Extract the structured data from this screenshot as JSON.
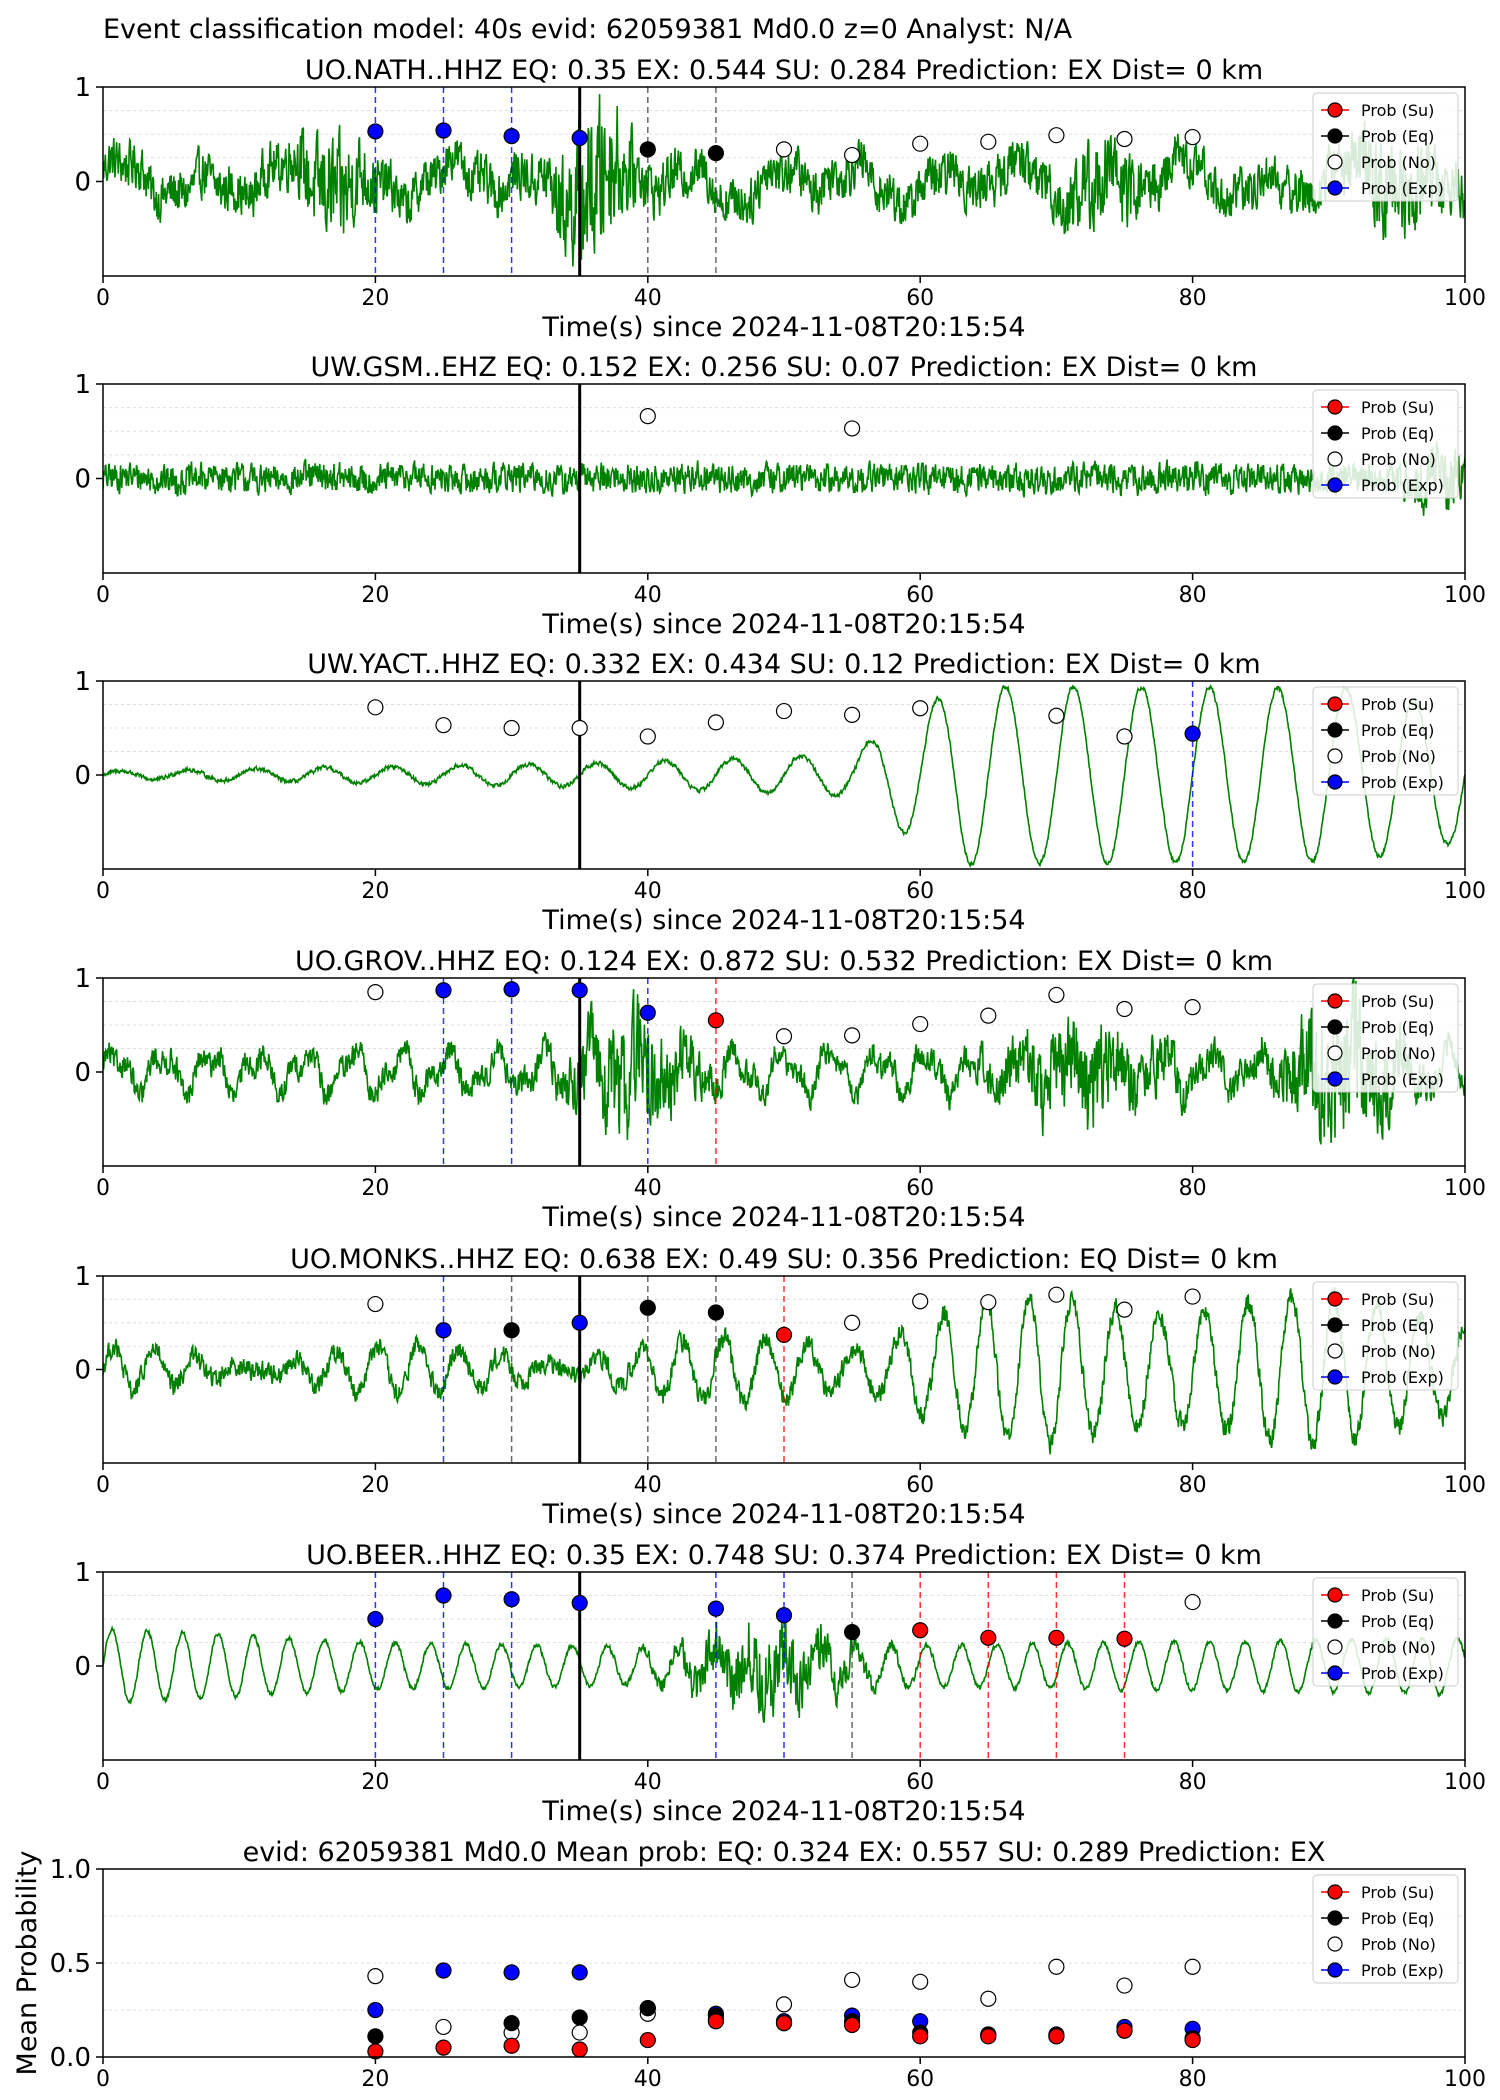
{
  "figure_title": "Event classification model: 40s evid: 62059381 Md0.0 z=0 Analyst: N/A",
  "legend_labels": {
    "su": "Prob (Su)",
    "eq": "Prob (Eq)",
    "no": "Prob (No)",
    "ex": "Prob (Exp)"
  },
  "colors": {
    "su": "#ff0000",
    "eq": "#000000",
    "no": "#ffffff",
    "ex": "#0000ff",
    "trace": "#008000"
  },
  "chart_data": [
    {
      "type": "scatter",
      "title": "UO.NATH..HHZ   EQ: 0.35  EX: 0.544  SU: 0.284   Prediction: EX    Dist= 0 km",
      "xlabel": "Time(s) since 2024-11-08T20:15:54",
      "xlim": [
        0,
        100
      ],
      "ylim": [
        -1,
        1
      ],
      "xticks": [
        "0",
        "20",
        "40",
        "60",
        "80",
        "100"
      ],
      "yticks": [
        "1",
        "0"
      ],
      "trace": {
        "noise": 0.22,
        "waves": [
          [
            0.14,
            6.0,
            0.0
          ],
          [
            0.1,
            13.0,
            1.2
          ],
          [
            0.06,
            2.3,
            0.4
          ]
        ],
        "bursts": [
          [
            17,
            2.5,
            0.3
          ],
          [
            36,
            2.5,
            0.55
          ],
          [
            73,
            3,
            0.2
          ],
          [
            95,
            3,
            0.25
          ]
        ]
      },
      "origin_time": 35,
      "markers": [
        {
          "class": "ex",
          "x": [
            20,
            25,
            30,
            35
          ],
          "y": [
            0.53,
            0.54,
            0.48,
            0.46
          ]
        },
        {
          "class": "eq",
          "x": [
            40,
            45
          ],
          "y": [
            0.34,
            0.3
          ]
        },
        {
          "class": "no",
          "x": [
            50,
            55,
            60,
            65,
            70,
            75,
            80
          ],
          "y": [
            0.34,
            0.28,
            0.4,
            0.42,
            0.49,
            0.45,
            0.47
          ]
        }
      ],
      "pick_lines": [
        {
          "x": 20,
          "class": "ex"
        },
        {
          "x": 25,
          "class": "ex"
        },
        {
          "x": 30,
          "class": "ex"
        },
        {
          "x": 40,
          "class": "eq"
        },
        {
          "x": 45,
          "class": "eq"
        }
      ]
    },
    {
      "type": "scatter",
      "title": "UW.GSM..EHZ   EQ: 0.152  EX: 0.256  SU: 0.07   Prediction: EX    Dist= 0 km",
      "xlabel": "Time(s) since 2024-11-08T20:15:54",
      "xlim": [
        0,
        100
      ],
      "ylim": [
        -1,
        1
      ],
      "xticks": [
        "0",
        "20",
        "40",
        "60",
        "80",
        "100"
      ],
      "yticks": [
        "1",
        "0"
      ],
      "trace": {
        "noise": 0.14,
        "waves": [
          [
            0.02,
            7.0,
            0.0
          ]
        ],
        "bursts": [
          [
            98,
            2,
            0.2
          ]
        ]
      },
      "origin_time": 35,
      "markers": [
        {
          "class": "no",
          "x": [
            40,
            55
          ],
          "y": [
            0.66,
            0.53
          ]
        }
      ],
      "pick_lines": []
    },
    {
      "type": "scatter",
      "title": "UW.YACT..HHZ   EQ: 0.332  EX: 0.434  SU: 0.12   Prediction: EX    Dist= 0 km",
      "xlabel": "Time(s) since 2024-11-08T20:15:54",
      "xlim": [
        0,
        100
      ],
      "ylim": [
        -1,
        1
      ],
      "xticks": [
        "0",
        "20",
        "40",
        "60",
        "80",
        "100"
      ],
      "yticks": [
        "1",
        "0"
      ],
      "trace": {
        "noise": 0.02,
        "waves": [],
        "ramp": {
          "period": 5.0,
          "pts": [
            [
              0,
              0.04
            ],
            [
              35,
              0.12
            ],
            [
              55,
              0.22
            ],
            [
              58,
              0.55
            ],
            [
              63,
              0.95
            ],
            [
              92,
              0.92
            ],
            [
              100,
              0.7
            ]
          ]
        }
      },
      "origin_time": 35,
      "markers": [
        {
          "class": "no",
          "x": [
            20,
            25,
            30,
            35,
            40,
            45,
            50,
            55,
            60,
            70,
            75
          ],
          "y": [
            0.72,
            0.53,
            0.5,
            0.5,
            0.41,
            0.56,
            0.68,
            0.64,
            0.71,
            0.63,
            0.41
          ]
        },
        {
          "class": "ex",
          "x": [
            80
          ],
          "y": [
            0.44
          ]
        }
      ],
      "pick_lines": [
        {
          "x": 80,
          "class": "ex"
        }
      ]
    },
    {
      "type": "scatter",
      "title": "UO.GROV..HHZ   EQ: 0.124  EX: 0.872  SU: 0.532   Prediction: EX    Dist= 0 km",
      "xlabel": "Time(s) since 2024-11-08T20:15:54",
      "xlim": [
        0,
        100
      ],
      "ylim": [
        -1,
        1
      ],
      "xticks": [
        "0",
        "20",
        "40",
        "60",
        "80",
        "100"
      ],
      "yticks": [
        "1",
        "0"
      ],
      "trace": {
        "noise": 0.12,
        "waves": [
          [
            0.18,
            3.5,
            0.0
          ],
          [
            0.1,
            1.7,
            0.9
          ]
        ],
        "bursts": [
          [
            39,
            4,
            0.45
          ],
          [
            72,
            6,
            0.3
          ],
          [
            91,
            4,
            0.55
          ]
        ]
      },
      "origin_time": 35,
      "markers": [
        {
          "class": "no",
          "x": [
            20,
            50,
            55,
            60,
            65,
            70,
            75,
            80
          ],
          "y": [
            0.85,
            0.38,
            0.39,
            0.51,
            0.6,
            0.82,
            0.67,
            0.69
          ]
        },
        {
          "class": "ex",
          "x": [
            25,
            30,
            35,
            40
          ],
          "y": [
            0.87,
            0.88,
            0.87,
            0.63
          ]
        },
        {
          "class": "su",
          "x": [
            45
          ],
          "y": [
            0.55
          ]
        }
      ],
      "pick_lines": [
        {
          "x": 25,
          "class": "ex"
        },
        {
          "x": 30,
          "class": "ex"
        },
        {
          "x": 40,
          "class": "ex"
        },
        {
          "x": 45,
          "class": "su"
        }
      ]
    },
    {
      "type": "scatter",
      "title": "UO.MONKS..HHZ   EQ: 0.638  EX: 0.49  SU: 0.356   Prediction: EQ    Dist= 0 km",
      "xlabel": "Time(s) since 2024-11-08T20:15:54",
      "xlim": [
        0,
        100
      ],
      "ylim": [
        -1,
        1
      ],
      "xticks": [
        "0",
        "20",
        "40",
        "60",
        "80",
        "100"
      ],
      "yticks": [
        "1",
        "0"
      ],
      "trace": {
        "noise": 0.1,
        "waves": [
          [
            0.12,
            2.8,
            0.0
          ]
        ],
        "ramp": {
          "period": 3.2,
          "pts": [
            [
              0,
              0.12
            ],
            [
              40,
              0.18
            ],
            [
              55,
              0.3
            ],
            [
              60,
              0.55
            ],
            [
              70,
              0.7
            ],
            [
              85,
              0.7
            ],
            [
              100,
              0.6
            ]
          ]
        }
      },
      "origin_time": 35,
      "markers": [
        {
          "class": "no",
          "x": [
            20,
            55,
            60,
            65,
            70,
            75,
            80
          ],
          "y": [
            0.7,
            0.5,
            0.73,
            0.72,
            0.8,
            0.64,
            0.78
          ]
        },
        {
          "class": "ex",
          "x": [
            25,
            35
          ],
          "y": [
            0.42,
            0.5
          ]
        },
        {
          "class": "eq",
          "x": [
            30,
            40,
            45
          ],
          "y": [
            0.42,
            0.66,
            0.61
          ]
        },
        {
          "class": "su",
          "x": [
            50
          ],
          "y": [
            0.37
          ]
        }
      ],
      "pick_lines": [
        {
          "x": 25,
          "class": "ex"
        },
        {
          "x": 30,
          "class": "eq"
        },
        {
          "x": 40,
          "class": "eq"
        },
        {
          "x": 45,
          "class": "eq"
        },
        {
          "x": 50,
          "class": "su"
        }
      ]
    },
    {
      "type": "scatter",
      "title": "UO.BEER..HHZ   EQ: 0.35  EX: 0.748  SU: 0.374   Prediction: EX    Dist= 0 km",
      "xlabel": "Time(s) since 2024-11-08T20:15:54",
      "xlim": [
        0,
        100
      ],
      "ylim": [
        -1,
        1
      ],
      "xticks": [
        "0",
        "20",
        "40",
        "60",
        "80",
        "100"
      ],
      "yticks": [
        "1",
        "0"
      ],
      "trace": {
        "noise": 0.02,
        "waves": [],
        "ramp": {
          "period": 2.6,
          "pts": [
            [
              0,
              0.4
            ],
            [
              20,
              0.25
            ],
            [
              40,
              0.2
            ],
            [
              60,
              0.22
            ],
            [
              100,
              0.3
            ]
          ]
        },
        "bursts": [
          [
            49,
            6,
            0.35
          ]
        ]
      },
      "origin_time": 35,
      "markers": [
        {
          "class": "ex",
          "x": [
            20,
            25,
            30,
            35,
            45,
            50
          ],
          "y": [
            0.5,
            0.75,
            0.71,
            0.67,
            0.61,
            0.54
          ]
        },
        {
          "class": "eq",
          "x": [
            55
          ],
          "y": [
            0.36
          ]
        },
        {
          "class": "su",
          "x": [
            60,
            65,
            70,
            75
          ],
          "y": [
            0.38,
            0.3,
            0.3,
            0.29
          ]
        },
        {
          "class": "no",
          "x": [
            80
          ],
          "y": [
            0.68
          ]
        }
      ],
      "pick_lines": [
        {
          "x": 20,
          "class": "ex"
        },
        {
          "x": 25,
          "class": "ex"
        },
        {
          "x": 30,
          "class": "ex"
        },
        {
          "x": 45,
          "class": "ex"
        },
        {
          "x": 50,
          "class": "ex"
        },
        {
          "x": 55,
          "class": "eq"
        },
        {
          "x": 60,
          "class": "su"
        },
        {
          "x": 65,
          "class": "su"
        },
        {
          "x": 70,
          "class": "su"
        },
        {
          "x": 75,
          "class": "su"
        }
      ]
    },
    {
      "type": "scatter",
      "title": "evid: 62059381  Md0.0   Mean prob:   EQ: 0.324  EX: 0.557  SU: 0.289   Prediction: EX",
      "ylabel": "Mean Probability",
      "xlim": [
        0,
        100
      ],
      "ylim": [
        0,
        1
      ],
      "xticks": [
        "0",
        "20",
        "40",
        "60",
        "80",
        "100"
      ],
      "yticks": [
        "1.0",
        "0.5",
        "0.0"
      ],
      "markers": [
        {
          "class": "no",
          "x": [
            20,
            25,
            30,
            35,
            40,
            45,
            50,
            55,
            60,
            65,
            70,
            75,
            80
          ],
          "y": [
            0.43,
            0.16,
            0.13,
            0.13,
            0.23,
            0.2,
            0.28,
            0.41,
            0.4,
            0.31,
            0.48,
            0.38,
            0.48
          ]
        },
        {
          "class": "ex",
          "x": [
            20,
            25,
            30,
            35,
            40,
            45,
            50,
            55,
            60,
            65,
            70,
            75,
            80
          ],
          "y": [
            0.25,
            0.46,
            0.45,
            0.45,
            0.26,
            0.23,
            0.19,
            0.22,
            0.19,
            0.12,
            0.11,
            0.16,
            0.15
          ]
        },
        {
          "class": "eq",
          "x": [
            20,
            30,
            35,
            40,
            45,
            50,
            55,
            60,
            65,
            70,
            75,
            80
          ],
          "y": [
            0.11,
            0.18,
            0.21,
            0.26,
            0.22,
            0.18,
            0.19,
            0.13,
            0.12,
            0.12,
            0.14,
            0.1
          ]
        },
        {
          "class": "su",
          "x": [
            20,
            25,
            30,
            35,
            40,
            45,
            50,
            55,
            60,
            65,
            70,
            75,
            80
          ],
          "y": [
            0.03,
            0.05,
            0.06,
            0.04,
            0.09,
            0.19,
            0.18,
            0.17,
            0.11,
            0.11,
            0.11,
            0.14,
            0.09
          ]
        }
      ]
    }
  ]
}
